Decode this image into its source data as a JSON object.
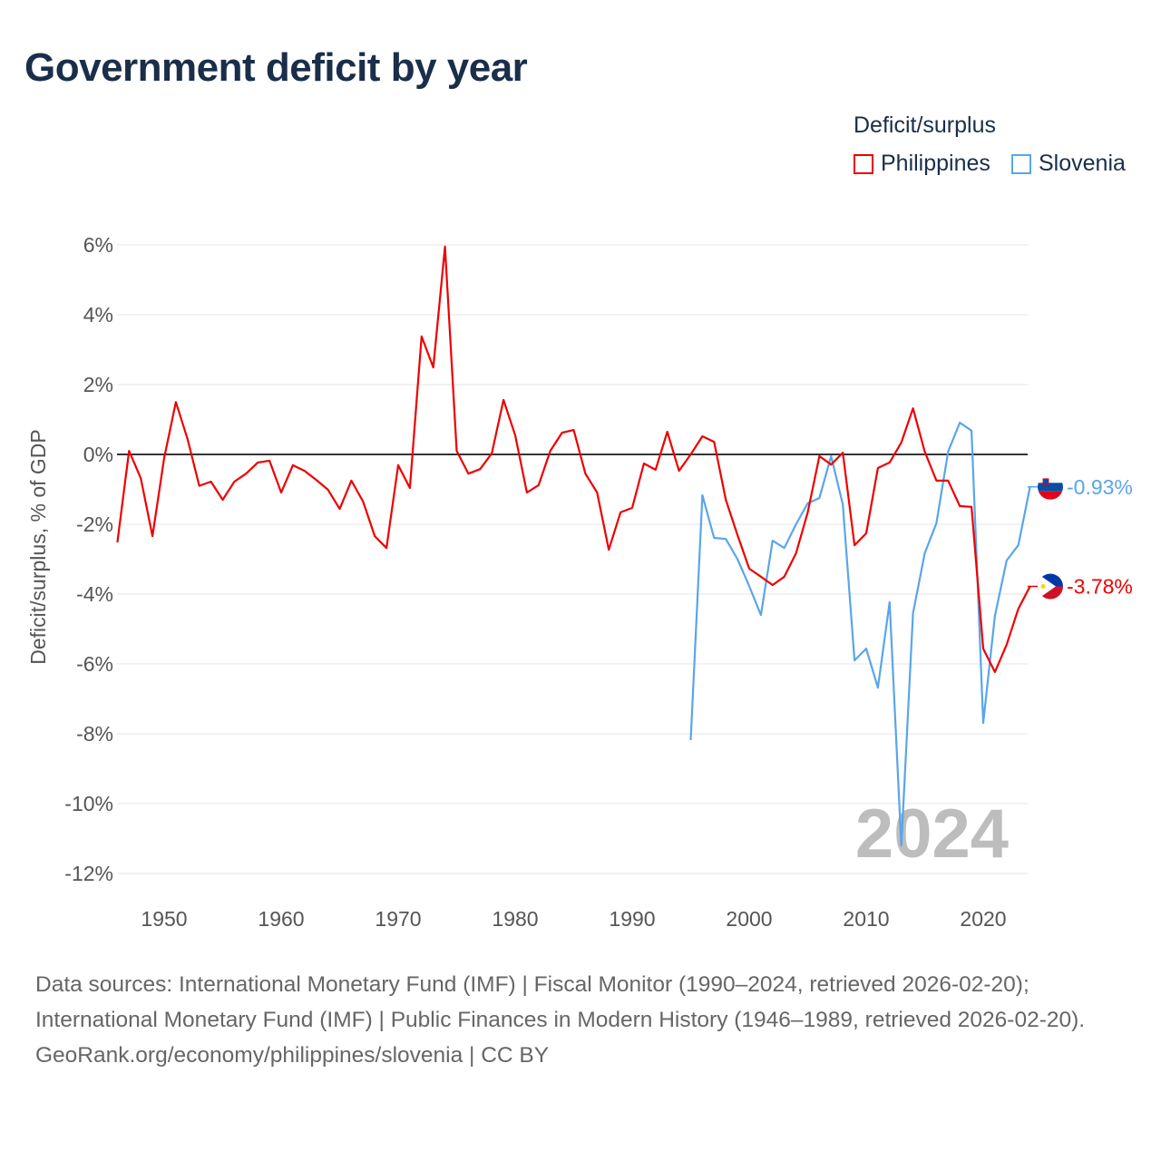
{
  "chart_data": {
    "type": "line",
    "title": "Government deficit by year",
    "ylabel": "Deficit/surplus, % of GDP",
    "xlabel": "",
    "ylim": [
      -12.5,
      6.5
    ],
    "xlim": [
      1946,
      2024
    ],
    "yticks": [
      6,
      4,
      2,
      0,
      -2,
      -4,
      -6,
      -8,
      -10,
      -12
    ],
    "ytick_labels": [
      "6%",
      "4%",
      "2%",
      "0%",
      "-2%",
      "-4%",
      "-6%",
      "-8%",
      "-10%",
      "-12%"
    ],
    "xticks": [
      1950,
      1960,
      1970,
      1980,
      1990,
      2000,
      2010,
      2020
    ],
    "xtick_labels": [
      "1950",
      "1960",
      "1970",
      "1980",
      "1990",
      "2000",
      "2010",
      "2020"
    ],
    "grid": true,
    "legend_title": "Deficit/surplus",
    "legend_position": "top-right",
    "year_watermark": "2024",
    "series": [
      {
        "name": "Philippines",
        "color": "#ee0000",
        "end_label": "-3.78%",
        "start_year": 1946,
        "values": [
          -2.52,
          0.1,
          -0.68,
          -2.34,
          -0.1,
          1.5,
          0.44,
          -0.9,
          -0.78,
          -1.3,
          -0.78,
          -0.55,
          -0.23,
          -0.18,
          -1.09,
          -0.31,
          -0.47,
          -0.73,
          -1.01,
          -1.56,
          -0.75,
          -1.35,
          -2.34,
          -2.68,
          -0.31,
          -0.96,
          3.38,
          2.49,
          5.95,
          0.1,
          -0.55,
          -0.42,
          0.03,
          1.56,
          0.55,
          -1.09,
          -0.88,
          0.1,
          0.62,
          0.7,
          -0.55,
          -1.09,
          -2.73,
          -1.66,
          -1.53,
          -0.26,
          -0.44,
          0.65,
          -0.47,
          0.0,
          0.52,
          0.36,
          -1.3,
          -2.31,
          -3.27,
          -3.5,
          -3.74,
          -3.5,
          -2.83,
          -1.66,
          -0.05,
          -0.29,
          0.05,
          -2.6,
          -2.26,
          -0.39,
          -0.23,
          0.34,
          1.32,
          0.08,
          -0.75,
          -0.75,
          -1.48,
          -1.5,
          -5.56,
          -6.23,
          -5.45,
          -4.42,
          -3.78
        ]
      },
      {
        "name": "Slovenia",
        "color": "#5aa5ea",
        "end_label": "-0.93%",
        "start_year": 1995,
        "values": [
          -8.18,
          -1.17,
          -2.39,
          -2.42,
          -3.0,
          -3.77,
          -4.6,
          -2.47,
          -2.68,
          -2.0,
          -1.4,
          -1.25,
          -0.05,
          -1.43,
          -5.9,
          -5.56,
          -6.68,
          -4.23,
          -11.2,
          -4.55,
          -2.83,
          -1.97,
          0.08,
          0.91,
          0.68,
          -7.69,
          -4.62,
          -3.04,
          -2.6,
          -0.93
        ]
      }
    ]
  },
  "footer": {
    "sources": "Data sources: International Monetary Fund (IMF) | Fiscal Monitor (1990–2024, retrieved 2026-02-20); International Monetary Fund (IMF) | Public Finances in Modern History (1946–1989, retrieved 2026-02-20).",
    "credit": "GeoRank.org/economy/philippines/slovenia | CC BY"
  }
}
